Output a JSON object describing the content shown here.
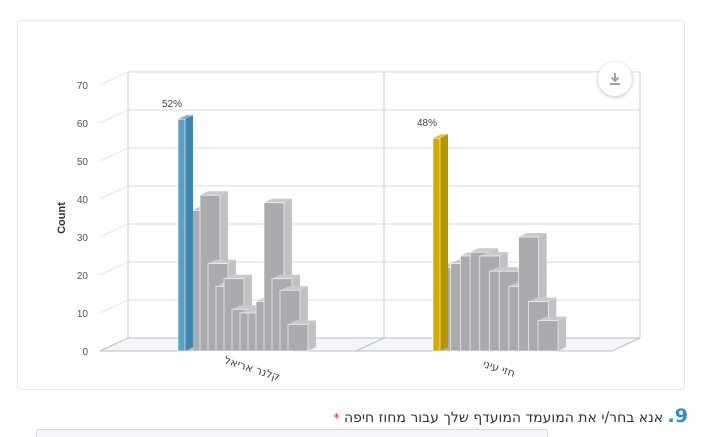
{
  "chart_data": {
    "type": "bar",
    "ylabel": "Count",
    "ylim": [
      0,
      70
    ],
    "yticks": [
      0,
      10,
      20,
      30,
      40,
      50,
      60,
      70
    ],
    "categories": [
      "קלנר אריאל",
      "חזי עיני"
    ],
    "highlight": [
      {
        "category": "קלנר אריאל",
        "value": 61,
        "label": "52%",
        "color": "#5b9fc3"
      },
      {
        "category": "חזי עיני",
        "value": 56,
        "label": "48%",
        "color": "#d4ad00"
      }
    ],
    "background_bars": [
      [
        35,
        37,
        41,
        23,
        17,
        19,
        11,
        10,
        10,
        13,
        39,
        19,
        16,
        7
      ],
      [
        22,
        23,
        25,
        26,
        25,
        21,
        21,
        17,
        30,
        13,
        8
      ]
    ],
    "background_color": "#a9abaf"
  },
  "toolbar": {
    "download_icon": "download-icon"
  },
  "question": {
    "number": "9.",
    "text": "אנא בחר/י את המועמד המועדף שלך עבור מחוז חיפה",
    "required_mark": "*"
  }
}
